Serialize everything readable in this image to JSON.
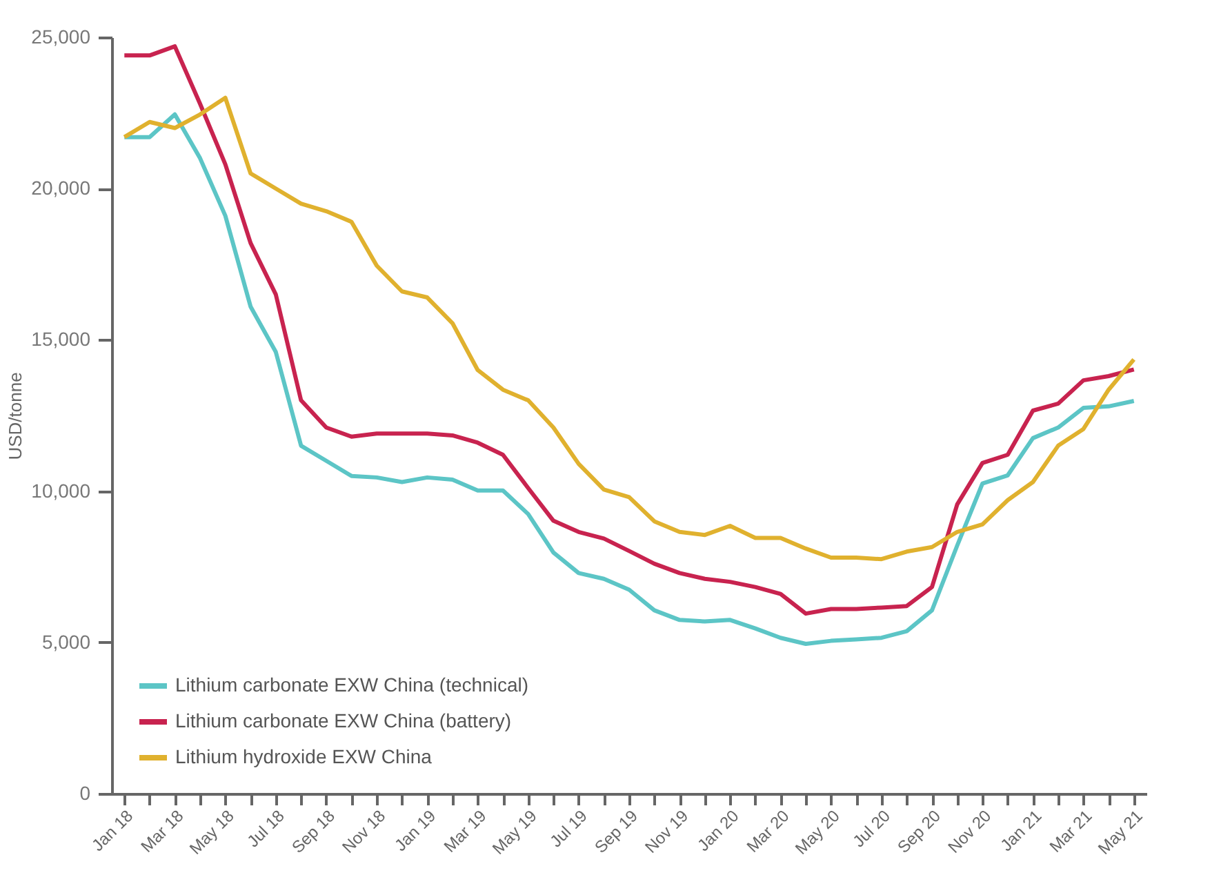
{
  "chart_data": {
    "type": "line",
    "ylabel": "USD/tonne",
    "categories": [
      "Jan 18",
      null,
      "Mar 18",
      null,
      "May 18",
      null,
      "Jul 18",
      null,
      "Sep 18",
      null,
      "Nov 18",
      null,
      "Jan 19",
      null,
      "Mar 19",
      null,
      "May 19",
      null,
      "Jul 19",
      null,
      "Sep 19",
      null,
      "Nov 19",
      null,
      "Jan 20",
      null,
      "Mar 20",
      null,
      "May 20",
      null,
      "Jul 20",
      null,
      "Sep 20",
      null,
      "Nov 20",
      null,
      "Jan 21",
      null,
      "Mar 21",
      null,
      "May 21"
    ],
    "series": [
      {
        "name": "Lithium carbonate EXW China (technical)",
        "color": "#5cc5c6",
        "values": [
          21700,
          21700,
          22450,
          21000,
          19100,
          16100,
          14600,
          11500,
          11000,
          10500,
          10450,
          10300,
          10450,
          10380,
          10020,
          10020,
          9240,
          7970,
          7290,
          7100,
          6740,
          6060,
          5740,
          5690,
          5740,
          5460,
          5150,
          4950,
          5050,
          5100,
          5150,
          5370,
          6060,
          8200,
          10250,
          10520,
          11750,
          12100,
          12750,
          12800,
          12980
        ]
      },
      {
        "name": "Lithium carbonate EXW China (battery)",
        "color": "#c8234f",
        "values": [
          24400,
          24400,
          24700,
          22800,
          20800,
          18200,
          16500,
          13000,
          12100,
          11800,
          11900,
          11900,
          11900,
          11840,
          11600,
          11200,
          10100,
          9020,
          8650,
          8430,
          8020,
          7600,
          7290,
          7100,
          7000,
          6830,
          6600,
          5950,
          6100,
          6100,
          6150,
          6200,
          6830,
          9560,
          10930,
          11200,
          12660,
          12890,
          13660,
          13800,
          14020
        ]
      },
      {
        "name": "Lithium hydroxide EXW China",
        "color": "#e0b12e",
        "values": [
          21700,
          22200,
          22000,
          22450,
          23000,
          20500,
          20000,
          19500,
          19250,
          18900,
          17450,
          16600,
          16400,
          15550,
          14000,
          13350,
          13000,
          12100,
          10900,
          10050,
          9800,
          9000,
          8650,
          8550,
          8850,
          8450,
          8450,
          8100,
          7800,
          7800,
          7750,
          8000,
          8150,
          8650,
          8900,
          9700,
          10300,
          11500,
          12050,
          13350,
          14350
        ]
      }
    ],
    "ylim": [
      0,
      25000
    ],
    "yticks": [
      0,
      {
        "value": 5000,
        "label": "5,000"
      },
      {
        "value": 10000,
        "label": "10,000"
      },
      {
        "value": 15000,
        "label": "15,000"
      },
      {
        "value": 20000,
        "label": "20,000"
      },
      {
        "value": 25000,
        "label": "25,000"
      }
    ],
    "grid": false,
    "legend": "bottom left",
    "marker": "none",
    "line_style": "solid"
  }
}
